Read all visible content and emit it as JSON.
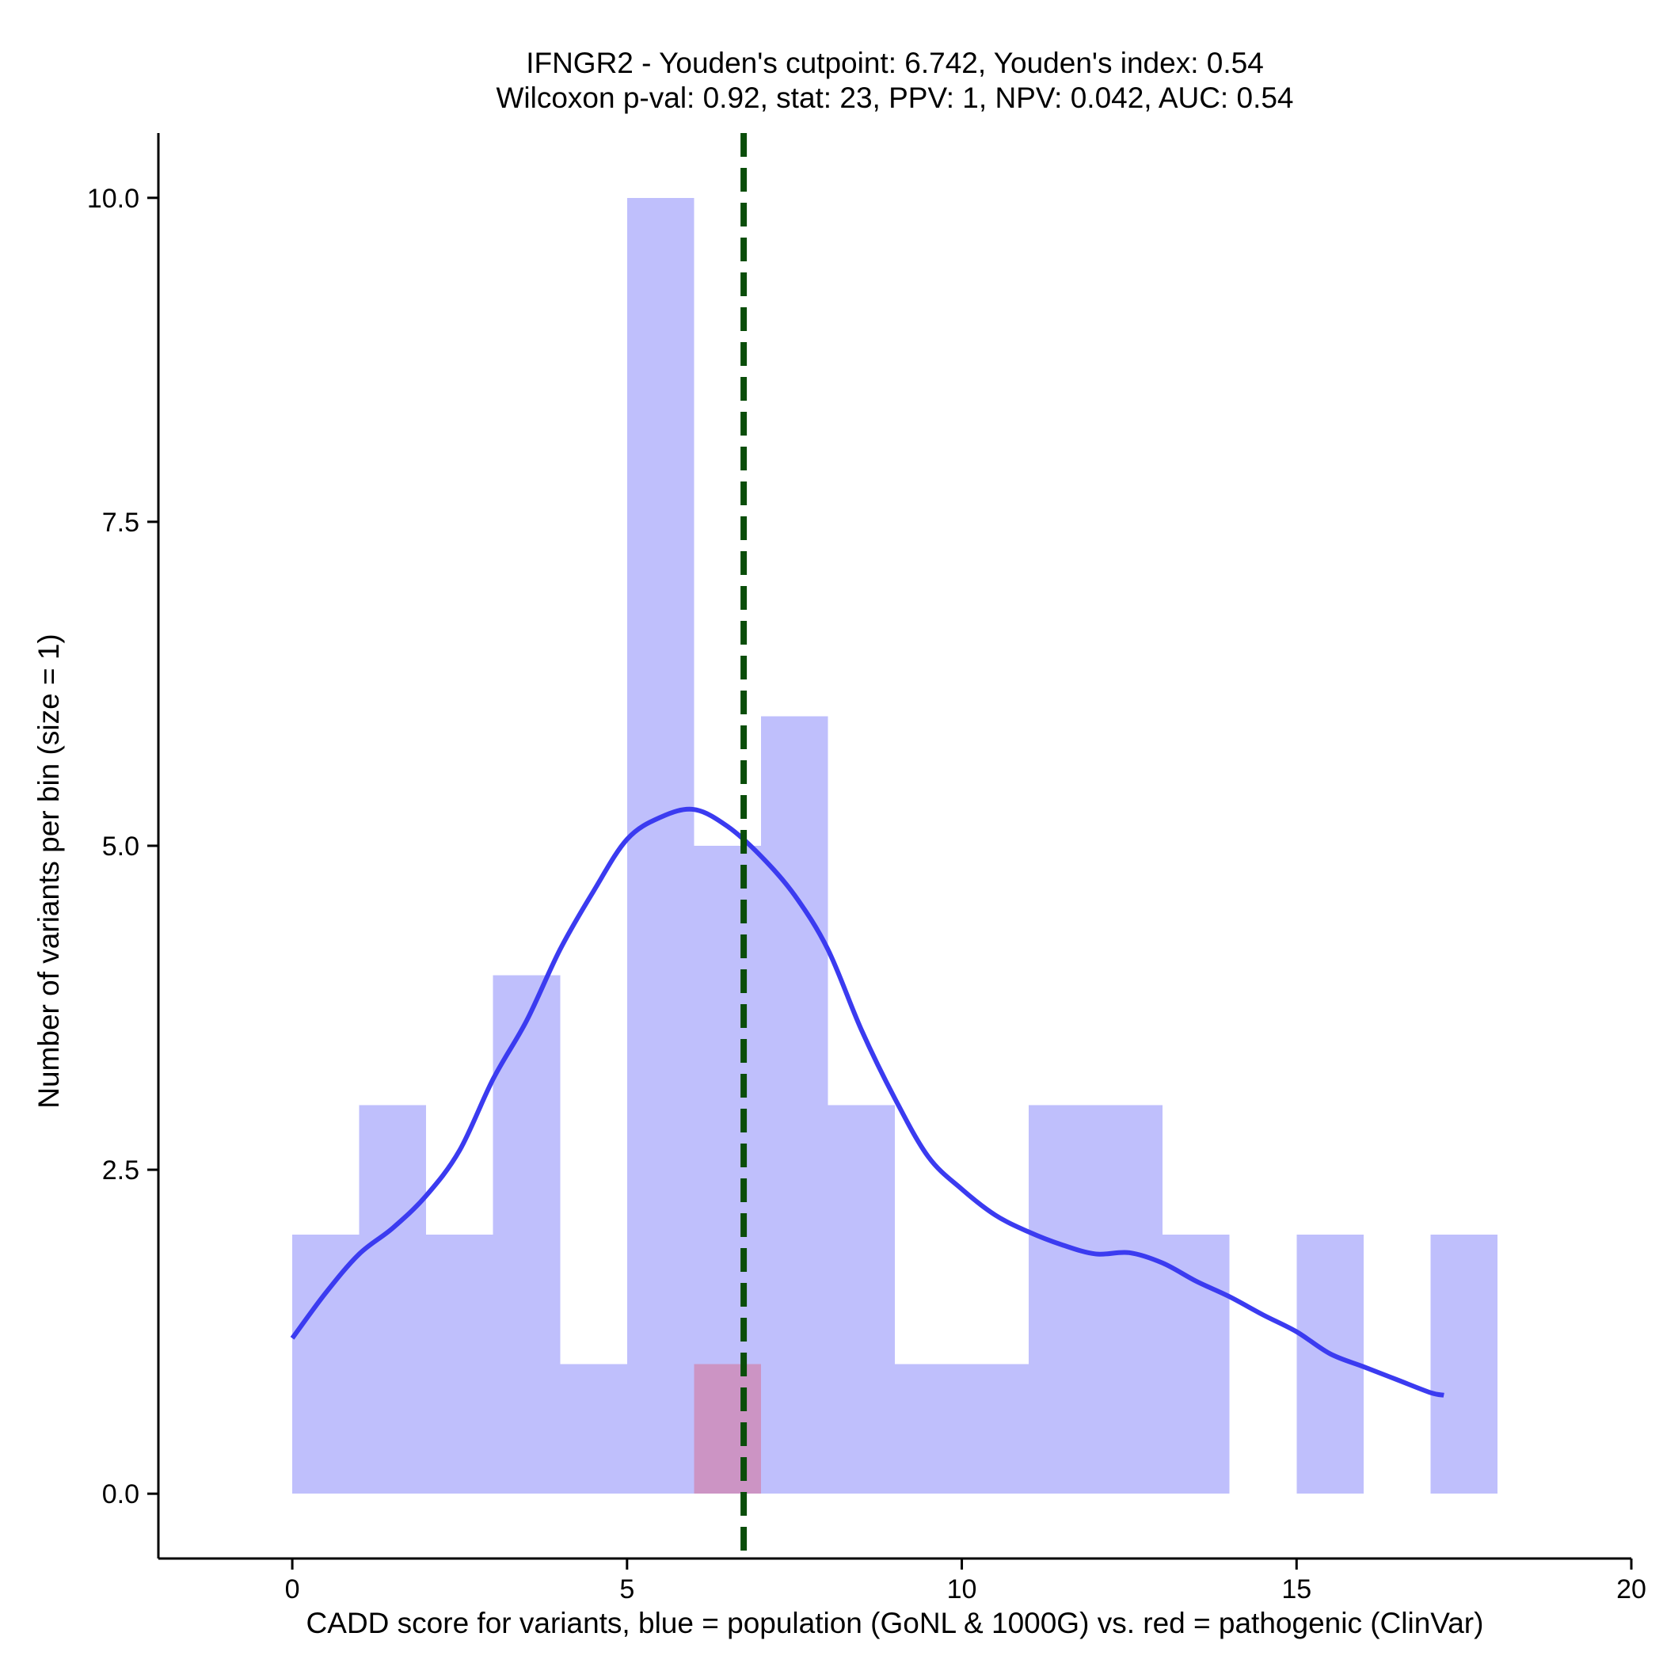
{
  "chart_data": {
    "type": "bar",
    "title_lines": [
      "IFNGR2 - Youden's cutpoint: 6.742, Youden's index: 0.54",
      "Wilcoxon p-val: 0.92, stat: 23, PPV: 1, NPV: 0.042, AUC: 0.54"
    ],
    "xlabel": "CADD score for variants, blue = population (GoNL & 1000G) vs. red = pathogenic (ClinVar)",
    "ylabel": "Number of variants per bin (size = 1)",
    "xlim": [
      -2,
      20
    ],
    "ylim": [
      -0.5,
      10.5
    ],
    "x_ticks": [
      0,
      5,
      10,
      15,
      20
    ],
    "x_tick_labels": [
      "0",
      "5",
      "10",
      "15",
      "20"
    ],
    "y_ticks": [
      0,
      2.5,
      5,
      7.5,
      10
    ],
    "y_tick_labels": [
      "0.0",
      "2.5",
      "5.0",
      "7.5",
      "10.0"
    ],
    "bin_width": 1,
    "series": [
      {
        "name": "population (GoNL & 1000G)",
        "color": "#bfbffc",
        "bins": [
          {
            "x0": 0,
            "x1": 1,
            "count": 2
          },
          {
            "x0": 1,
            "x1": 2,
            "count": 3
          },
          {
            "x0": 2,
            "x1": 3,
            "count": 2
          },
          {
            "x0": 3,
            "x1": 4,
            "count": 4
          },
          {
            "x0": 4,
            "x1": 5,
            "count": 1
          },
          {
            "x0": 5,
            "x1": 6,
            "count": 10
          },
          {
            "x0": 6,
            "x1": 7,
            "count": 5
          },
          {
            "x0": 7,
            "x1": 8,
            "count": 6
          },
          {
            "x0": 8,
            "x1": 9,
            "count": 3
          },
          {
            "x0": 9,
            "x1": 10,
            "count": 1
          },
          {
            "x0": 10,
            "x1": 11,
            "count": 1
          },
          {
            "x0": 11,
            "x1": 12,
            "count": 3
          },
          {
            "x0": 12,
            "x1": 13,
            "count": 3
          },
          {
            "x0": 13,
            "x1": 14,
            "count": 2
          },
          {
            "x0": 15,
            "x1": 16,
            "count": 2
          },
          {
            "x0": 17,
            "x1": 18,
            "count": 2
          }
        ]
      },
      {
        "name": "pathogenic (ClinVar)",
        "color": "#cc94c4",
        "bins": [
          {
            "x0": 6,
            "x1": 7,
            "count": 1
          }
        ]
      }
    ],
    "density": {
      "name": "population density",
      "color": "#3b3bf0",
      "points": [
        [
          0,
          1.2
        ],
        [
          0.5,
          1.55
        ],
        [
          1,
          1.85
        ],
        [
          1.5,
          2.05
        ],
        [
          2,
          2.3
        ],
        [
          2.5,
          2.65
        ],
        [
          3,
          3.2
        ],
        [
          3.5,
          3.65
        ],
        [
          4,
          4.2
        ],
        [
          4.5,
          4.65
        ],
        [
          5,
          5.05
        ],
        [
          5.5,
          5.22
        ],
        [
          6,
          5.28
        ],
        [
          6.5,
          5.15
        ],
        [
          7,
          4.92
        ],
        [
          7.5,
          4.62
        ],
        [
          8,
          4.2
        ],
        [
          8.5,
          3.58
        ],
        [
          9,
          3.05
        ],
        [
          9.5,
          2.6
        ],
        [
          10,
          2.35
        ],
        [
          10.5,
          2.15
        ],
        [
          11,
          2.02
        ],
        [
          11.5,
          1.92
        ],
        [
          12,
          1.85
        ],
        [
          12.5,
          1.86
        ],
        [
          13,
          1.78
        ],
        [
          13.5,
          1.64
        ],
        [
          14,
          1.52
        ],
        [
          14.5,
          1.38
        ],
        [
          15,
          1.25
        ],
        [
          15.5,
          1.08
        ],
        [
          16,
          0.98
        ],
        [
          16.5,
          0.88
        ],
        [
          17,
          0.78
        ],
        [
          17.2,
          0.76
        ]
      ]
    },
    "cutpoint": {
      "label": "Youden's cutpoint",
      "x": 6.742,
      "color": "#0a4d0a"
    },
    "grid": false,
    "legend": "none"
  }
}
